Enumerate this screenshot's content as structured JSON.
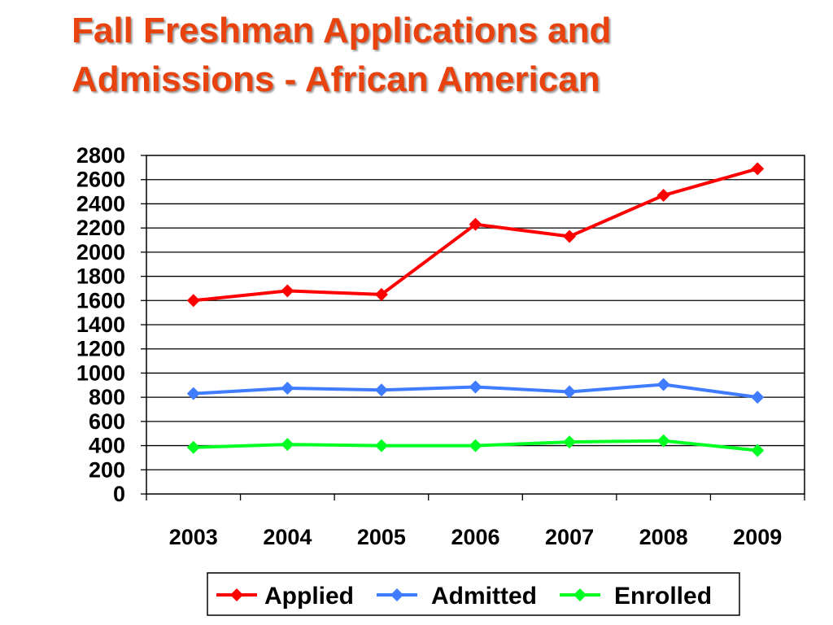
{
  "slide": {
    "title_lines": [
      "Fall Freshman Applications and",
      "Admissions - African American"
    ],
    "title_color": "#e8420e"
  },
  "chart_data": {
    "type": "line",
    "title": "Fall Freshman Applications and Admissions - African American",
    "xlabel": "",
    "ylabel": "",
    "categories": [
      "2003",
      "2004",
      "2005",
      "2006",
      "2007",
      "2008",
      "2009"
    ],
    "ylim": [
      0,
      2800
    ],
    "yticks": [
      0,
      200,
      400,
      600,
      800,
      1000,
      1200,
      1400,
      1600,
      1800,
      2000,
      2200,
      2400,
      2600,
      2800
    ],
    "grid": true,
    "legend_position": "bottom",
    "series": [
      {
        "name": "Applied",
        "color": "#ff0000",
        "marker": "diamond",
        "values": [
          1600,
          1680,
          1650,
          2230,
          2130,
          2470,
          2690
        ]
      },
      {
        "name": "Admitted",
        "color": "#3f7cff",
        "marker": "diamond",
        "values": [
          830,
          875,
          860,
          885,
          845,
          905,
          800
        ]
      },
      {
        "name": "Enrolled",
        "color": "#00ff22",
        "marker": "diamond",
        "values": [
          385,
          410,
          400,
          400,
          430,
          440,
          360
        ]
      }
    ]
  }
}
